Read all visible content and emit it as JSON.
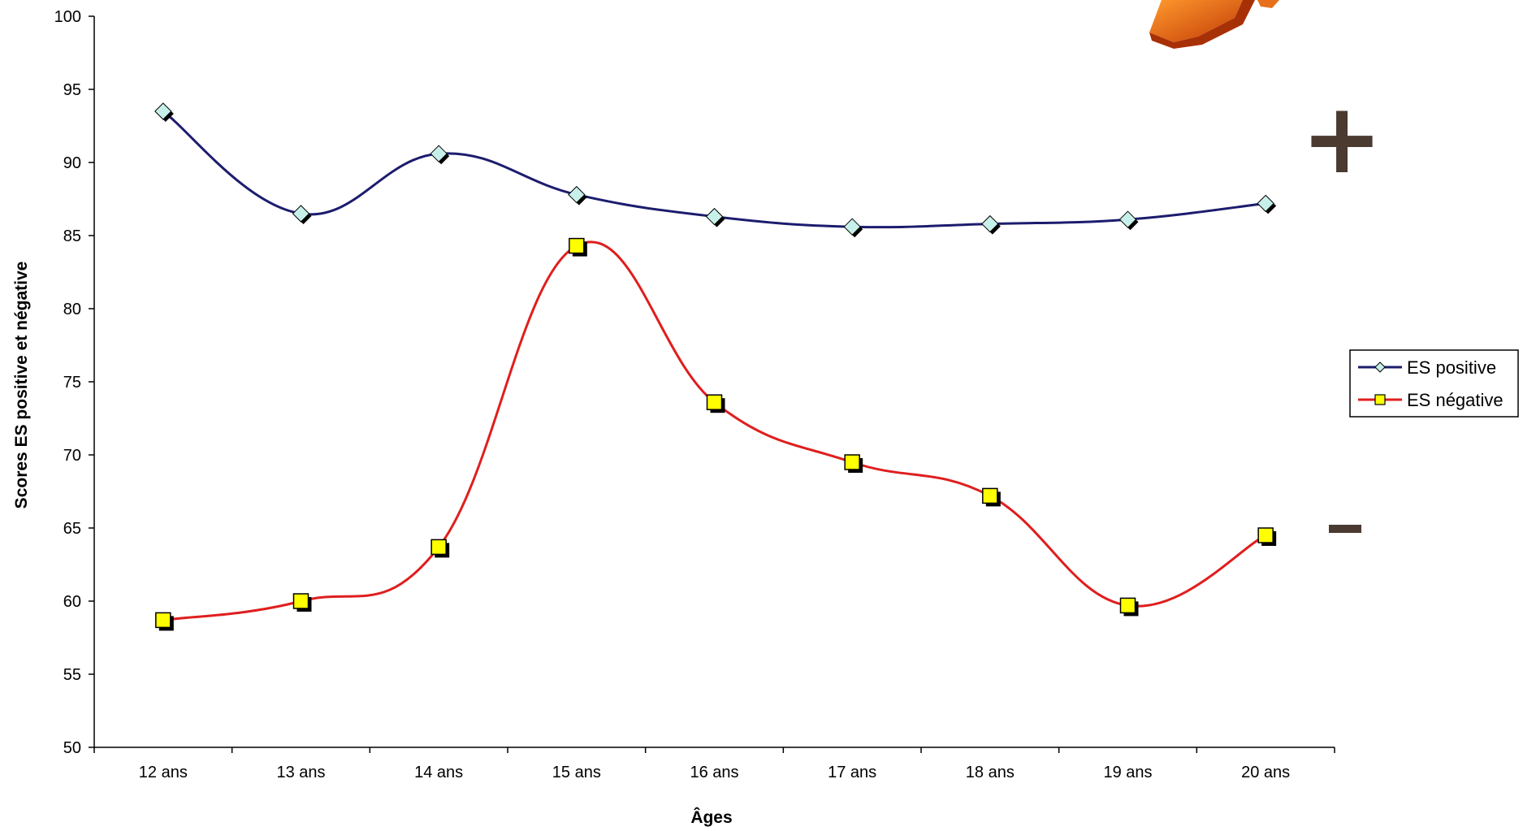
{
  "chart_data": {
    "type": "line",
    "title": "",
    "xlabel": "Âges",
    "ylabel": "Scores ES positive et négative",
    "ylim": [
      50,
      100
    ],
    "yticks": [
      50,
      55,
      60,
      65,
      70,
      75,
      80,
      85,
      90,
      95,
      100
    ],
    "categories": [
      "12 ans",
      "13 ans",
      "14 ans",
      "15 ans",
      "16 ans",
      "17 ans",
      "18 ans",
      "19 ans",
      "20 ans"
    ],
    "grid": false,
    "legend_position": "right",
    "series": [
      {
        "name": "ES positive",
        "values": [
          93.5,
          86.5,
          90.6,
          87.8,
          86.3,
          85.6,
          85.8,
          86.1,
          87.2
        ],
        "color": "#1c1c6e",
        "marker": "diamond",
        "marker_fill": "#c8f0ea"
      },
      {
        "name": "ES négative",
        "values": [
          58.7,
          60.0,
          63.7,
          84.3,
          73.6,
          69.5,
          67.2,
          59.7,
          64.5
        ],
        "color": "#e01e1e",
        "marker": "square",
        "marker_fill": "#ffff00"
      }
    ],
    "annotations": [
      {
        "text": "+",
        "color": "#4a3a30"
      },
      {
        "text": "-",
        "color": "#4a3a30"
      }
    ]
  }
}
